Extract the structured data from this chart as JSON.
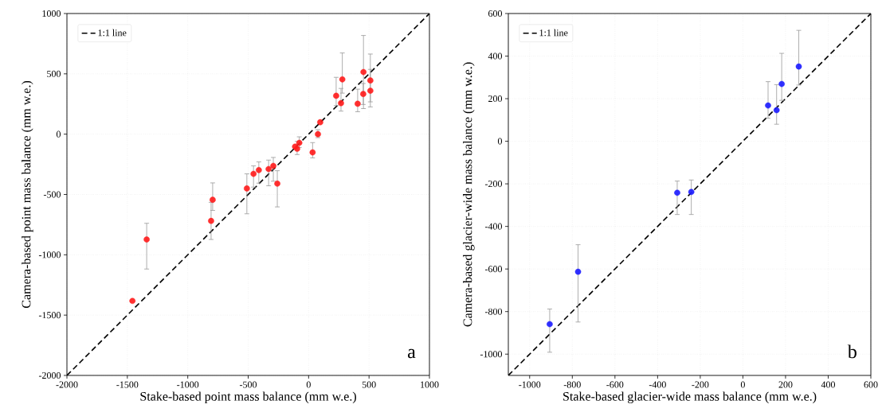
{
  "chart_data": [
    {
      "type": "scatter",
      "xlabel": "Stake-based point mass balance (mm w.e.)",
      "ylabel": "Camera-based point mass balance (mm w.e.)",
      "xlim": [
        -2000,
        1000
      ],
      "ylim": [
        -2000,
        1000
      ],
      "xticks": [
        -2000,
        -1500,
        -1000,
        -500,
        0,
        500,
        1000
      ],
      "yticks": [
        -2000,
        -1500,
        -1000,
        -500,
        0,
        500,
        1000
      ],
      "grid": true,
      "legend": "top left",
      "annotations": [
        "a"
      ],
      "series": [
        {
          "name": "1:1 line",
          "type": "line",
          "color": "#000000",
          "line_style": "dashed",
          "marker": "none",
          "x": [
            -2000,
            1000
          ],
          "values": [
            -2000,
            1000
          ]
        },
        {
          "color": "#ff1a1a",
          "marker": "circle",
          "x": [
            -1458,
            -1340,
            -807,
            -794,
            -511,
            -456,
            -412,
            -331,
            -292,
            -259,
            -112,
            -95,
            -77,
            33,
            77,
            96,
            228,
            268,
            279,
            406,
            452,
            454,
            511,
            511
          ],
          "values": [
            -1382,
            -873,
            -719,
            -544,
            -450,
            -329,
            -298,
            -289,
            -263,
            -410,
            -103,
            -121,
            -72,
            -151,
            0,
            99,
            318,
            257,
            454,
            252,
            333,
            515,
            445,
            360
          ],
          "errors": [
            null,
            [
              -1118,
              -739
            ],
            [
              -873,
              -565
            ],
            [
              -632,
              -404
            ],
            [
              -660,
              -329
            ],
            [
              -439,
              -263
            ],
            [
              -406,
              -230
            ],
            [
              -428,
              -215
            ],
            [
              -390,
              -193
            ],
            [
              -603,
              -303
            ],
            null,
            [
              -169,
              -60
            ],
            [
              -110,
              -22
            ],
            [
              -197,
              -70
            ],
            [
              -29,
              37
            ],
            null,
            [
              237,
              471
            ],
            [
              191,
              379
            ],
            [
              340,
              673
            ],
            [
              186,
              373
            ],
            [
              246,
              420
            ],
            [
              212,
              818
            ],
            [
              226,
              664
            ],
            [
              268,
              537
            ]
          ]
        }
      ]
    },
    {
      "type": "scatter",
      "xlabel": "Stake-based glacier-wide mass balance (mm w.e.)",
      "ylabel": "Camera-based glacier-wide mass balance (mm w.e.)",
      "xlim": [
        -1100,
        600
      ],
      "ylim": [
        -1100,
        600
      ],
      "xticks": [
        -1000,
        -800,
        -600,
        -400,
        -200,
        0,
        200,
        400,
        600
      ],
      "yticks": [
        -1000,
        -800,
        -600,
        -400,
        -200,
        0,
        200,
        400,
        600
      ],
      "grid": true,
      "legend": "top left",
      "annotations": [
        "b"
      ],
      "series": [
        {
          "name": "1:1 line",
          "type": "line",
          "color": "#000000",
          "line_style": "dashed",
          "marker": "none",
          "x": [
            -1100,
            600
          ],
          "values": [
            -1100,
            600
          ]
        },
        {
          "color": "#1a1aff",
          "marker": "circle",
          "x": [
            -906,
            -773,
            -308,
            -242,
            118,
            158,
            182,
            262
          ],
          "values": [
            -859,
            -613,
            -242,
            -238,
            168,
            146,
            269,
            351
          ],
          "errors": [
            [
              -991,
              -788
            ],
            [
              -849,
              -486
            ],
            [
              -344,
              -187
            ],
            [
              -344,
              -182
            ],
            [
              108,
              280
            ],
            [
              80,
              266
            ],
            [
              192,
              413
            ],
            [
              264,
              521
            ]
          ]
        }
      ]
    }
  ]
}
